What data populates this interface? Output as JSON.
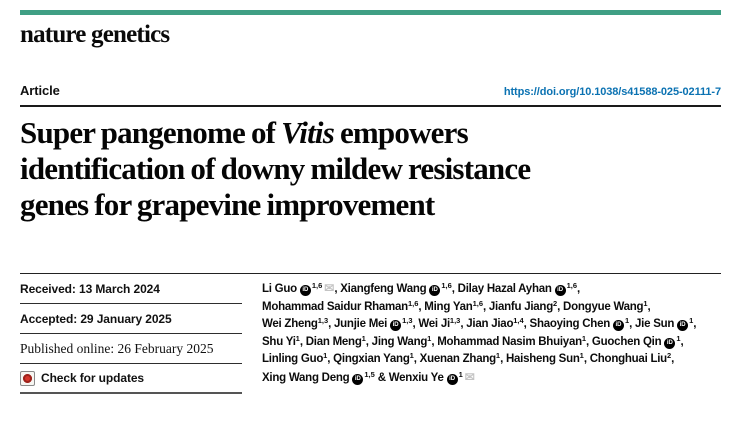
{
  "journal": {
    "name": "nature genetics",
    "brand_color": "#3f9f84"
  },
  "header": {
    "article_label": "Article",
    "doi": "https://doi.org/10.1038/s41588-025-02111-7",
    "link_color": "#0b72b2"
  },
  "title": {
    "full_text": "Super pangenome of Vitis empowers identification of downy mildew resistance genes for grapevine improvement",
    "lines": [
      [
        {
          "text": "Super pangenome of "
        },
        {
          "text": "Vitis",
          "italic": true
        },
        {
          "text": " empowers"
        }
      ],
      [
        {
          "text": "identification of downy mildew resistance"
        }
      ],
      [
        {
          "text": "genes for grapevine improvement"
        }
      ]
    ]
  },
  "metadata": {
    "received": "Received: 13 March 2024",
    "accepted": "Accepted: 29 January 2025",
    "published_online": "Published online: 26 February 2025",
    "check_for_updates": "Check for updates"
  },
  "icons": {
    "orcid_text": "iD",
    "envelope_glyph": "✉",
    "crossmark": "crossmark-icon"
  },
  "authors": {
    "lines": [
      [
        {
          "t": "Li Guo "
        },
        {
          "i": "orcid"
        },
        {
          "s": "1,6"
        },
        {
          "i": "envelope"
        },
        {
          "t": ", Xiangfeng Wang "
        },
        {
          "i": "orcid"
        },
        {
          "s": "1,6"
        },
        {
          "t": ", Dilay Hazal Ayhan "
        },
        {
          "i": "orcid"
        },
        {
          "s": "1,6"
        },
        {
          "t": ","
        }
      ],
      [
        {
          "t": "Mohammad Saidur Rhaman"
        },
        {
          "s": "1,6"
        },
        {
          "t": ", Ming Yan"
        },
        {
          "s": "1,6"
        },
        {
          "t": ", Jianfu Jiang"
        },
        {
          "s": "2"
        },
        {
          "t": ", Dongyue Wang"
        },
        {
          "s": "1"
        },
        {
          "t": ","
        }
      ],
      [
        {
          "t": "Wei Zheng"
        },
        {
          "s": "1,3"
        },
        {
          "t": ", Junjie Mei "
        },
        {
          "i": "orcid"
        },
        {
          "s": "1,3"
        },
        {
          "t": ", Wei Ji"
        },
        {
          "s": "1,3"
        },
        {
          "t": ", Jian Jiao"
        },
        {
          "s": "1,4"
        },
        {
          "t": ", Shaoying Chen "
        },
        {
          "i": "orcid"
        },
        {
          "s": "1"
        },
        {
          "t": ", Jie Sun "
        },
        {
          "i": "orcid"
        },
        {
          "s": "1"
        },
        {
          "t": ","
        }
      ],
      [
        {
          "t": "Shu Yi"
        },
        {
          "s": "1"
        },
        {
          "t": ", Dian Meng"
        },
        {
          "s": "1"
        },
        {
          "t": ", Jing Wang"
        },
        {
          "s": "1"
        },
        {
          "t": ", Mohammad Nasim Bhuiyan"
        },
        {
          "s": "1"
        },
        {
          "t": ", Guochen Qin "
        },
        {
          "i": "orcid"
        },
        {
          "s": "1"
        },
        {
          "t": ","
        }
      ],
      [
        {
          "t": "Linling Guo"
        },
        {
          "s": "1"
        },
        {
          "t": ", Qingxian Yang"
        },
        {
          "s": "1"
        },
        {
          "t": ", Xuenan Zhang"
        },
        {
          "s": "1"
        },
        {
          "t": ", Haisheng Sun"
        },
        {
          "s": "1"
        },
        {
          "t": ", Chonghuai Liu"
        },
        {
          "s": "2"
        },
        {
          "t": ","
        }
      ],
      [
        {
          "t": "Xing Wang Deng "
        },
        {
          "i": "orcid"
        },
        {
          "s": "1,5"
        },
        {
          "t": " & Wenxiu Ye "
        },
        {
          "i": "orcid"
        },
        {
          "s": "1"
        },
        {
          "i": "envelope"
        }
      ]
    ]
  }
}
